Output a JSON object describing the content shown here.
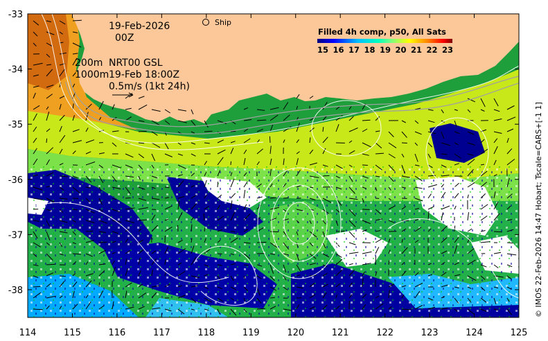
{
  "map": {
    "date_line": "19-Feb-2026",
    "time_line": "00Z",
    "ship_label": "Ship",
    "depth_200": "200m",
    "depth_1000": "1000m",
    "product": "NRT00 GSL",
    "product_time": "19-Feb 18:00Z",
    "velocity_scale": "0.5m/s (1kt 24h)",
    "colorbar_title": "Filled 4h comp, p50, All Sats",
    "colorbar_ticks": [
      "15",
      "16",
      "17",
      "18",
      "19",
      "20",
      "21",
      "22",
      "23"
    ],
    "side_caption": "© IMOS 22-Feb-2026 14:47 Hobart; Tscale=CARS+[-1 1]",
    "lon_ticks": [
      "114",
      "115",
      "116",
      "117",
      "118",
      "119",
      "120",
      "121",
      "122",
      "123",
      "124",
      "125"
    ],
    "lat_ticks": [
      "-33",
      "-34",
      "-35",
      "-36",
      "-37",
      "-38"
    ],
    "colors": {
      "land": "#fcc89a",
      "cb_15": "#00007f",
      "cb_16": "#0000ff",
      "cb_17": "#007fff",
      "cb_18": "#00ffff",
      "cb_19": "#7fff7f",
      "cb_20": "#ffff00",
      "cb_21": "#ff7f00",
      "cb_22": "#ff0000",
      "cb_23": "#7f0000"
    }
  }
}
